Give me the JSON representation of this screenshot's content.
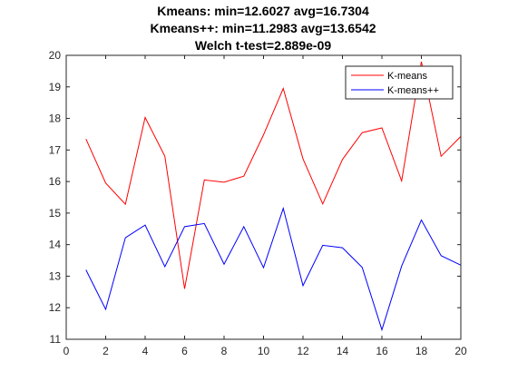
{
  "colors": {
    "axes": "#262626",
    "background": "#ffffff"
  },
  "chart_data": {
    "type": "line",
    "title_lines": [
      "Kmeans: min=12.6027 avg=16.7304",
      "Kmeans++: min=11.2983 avg=13.6542",
      "Welch t-test=2.889e-09"
    ],
    "xlabel": "",
    "ylabel": "",
    "xlim": [
      0,
      20
    ],
    "ylim": [
      11,
      20
    ],
    "x_ticks": [
      0,
      2,
      4,
      6,
      8,
      10,
      12,
      14,
      16,
      18,
      20
    ],
    "y_ticks": [
      11,
      12,
      13,
      14,
      15,
      16,
      17,
      18,
      19,
      20
    ],
    "grid": false,
    "legend_position": "top-right",
    "x": [
      1,
      2,
      3,
      4,
      5,
      6,
      7,
      8,
      9,
      10,
      11,
      12,
      13,
      14,
      15,
      16,
      17,
      18,
      19,
      20
    ],
    "series": [
      {
        "name": "K-means",
        "color": "#ff0000",
        "values": [
          17.35,
          15.95,
          15.28,
          18.03,
          16.8,
          12.6,
          16.05,
          15.98,
          16.17,
          17.48,
          18.95,
          16.72,
          15.29,
          16.7,
          17.55,
          17.7,
          16.02,
          19.8,
          16.8,
          17.43
        ]
      },
      {
        "name": "K-means++",
        "color": "#0000ff",
        "values": [
          13.2,
          11.95,
          14.22,
          14.62,
          13.3,
          14.57,
          14.67,
          13.38,
          14.57,
          13.27,
          15.15,
          12.7,
          13.98,
          13.9,
          13.28,
          11.3,
          13.32,
          14.78,
          13.65,
          13.35
        ]
      }
    ]
  }
}
